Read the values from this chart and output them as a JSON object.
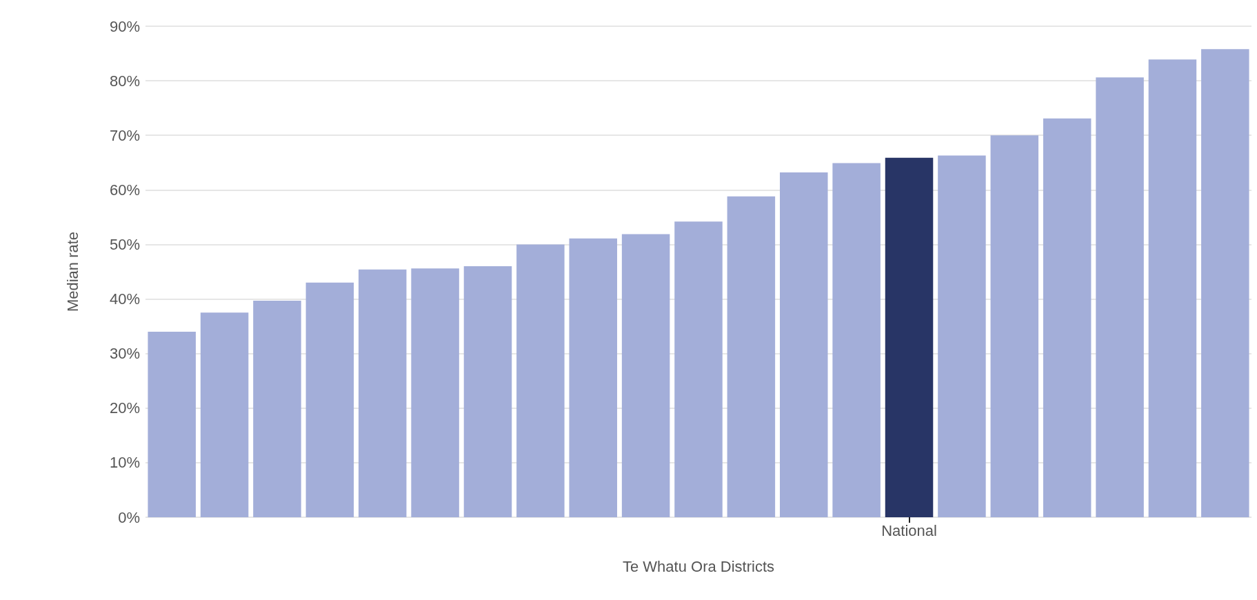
{
  "chart_data": {
    "type": "bar",
    "xlabel": "Te Whatu Ora Districts",
    "ylabel": "Median rate",
    "categories": [
      null,
      null,
      null,
      null,
      null,
      null,
      null,
      null,
      null,
      null,
      null,
      null,
      null,
      null,
      "National",
      null,
      null,
      null,
      null,
      null,
      null
    ],
    "values": [
      34.0,
      37.5,
      39.7,
      43.0,
      45.4,
      45.6,
      46.0,
      50.0,
      51.1,
      51.9,
      54.2,
      58.8,
      63.2,
      64.9,
      65.9,
      66.3,
      70.0,
      73.1,
      80.6,
      83.9,
      85.8
    ],
    "colors": [
      "#a3aed9",
      "#a3aed9",
      "#a3aed9",
      "#a3aed9",
      "#a3aed9",
      "#a3aed9",
      "#a3aed9",
      "#a3aed9",
      "#a3aed9",
      "#a3aed9",
      "#a3aed9",
      "#a3aed9",
      "#a3aed9",
      "#a3aed9",
      "#283566",
      "#a3aed9",
      "#a3aed9",
      "#a3aed9",
      "#a3aed9",
      "#a3aed9",
      "#a3aed9"
    ],
    "ylim": [
      0,
      90
    ],
    "yticks": [
      {
        "value": 0,
        "label": "0%"
      },
      {
        "value": 10,
        "label": "10%"
      },
      {
        "value": 20,
        "label": "20%"
      },
      {
        "value": 30,
        "label": "30%"
      },
      {
        "value": 40,
        "label": "40%"
      },
      {
        "value": 50,
        "label": "50%"
      },
      {
        "value": 60,
        "label": "60%"
      },
      {
        "value": 70,
        "label": "70%"
      },
      {
        "value": 80,
        "label": "80%"
      },
      {
        "value": 90,
        "label": "90%"
      }
    ],
    "grid": "y"
  }
}
